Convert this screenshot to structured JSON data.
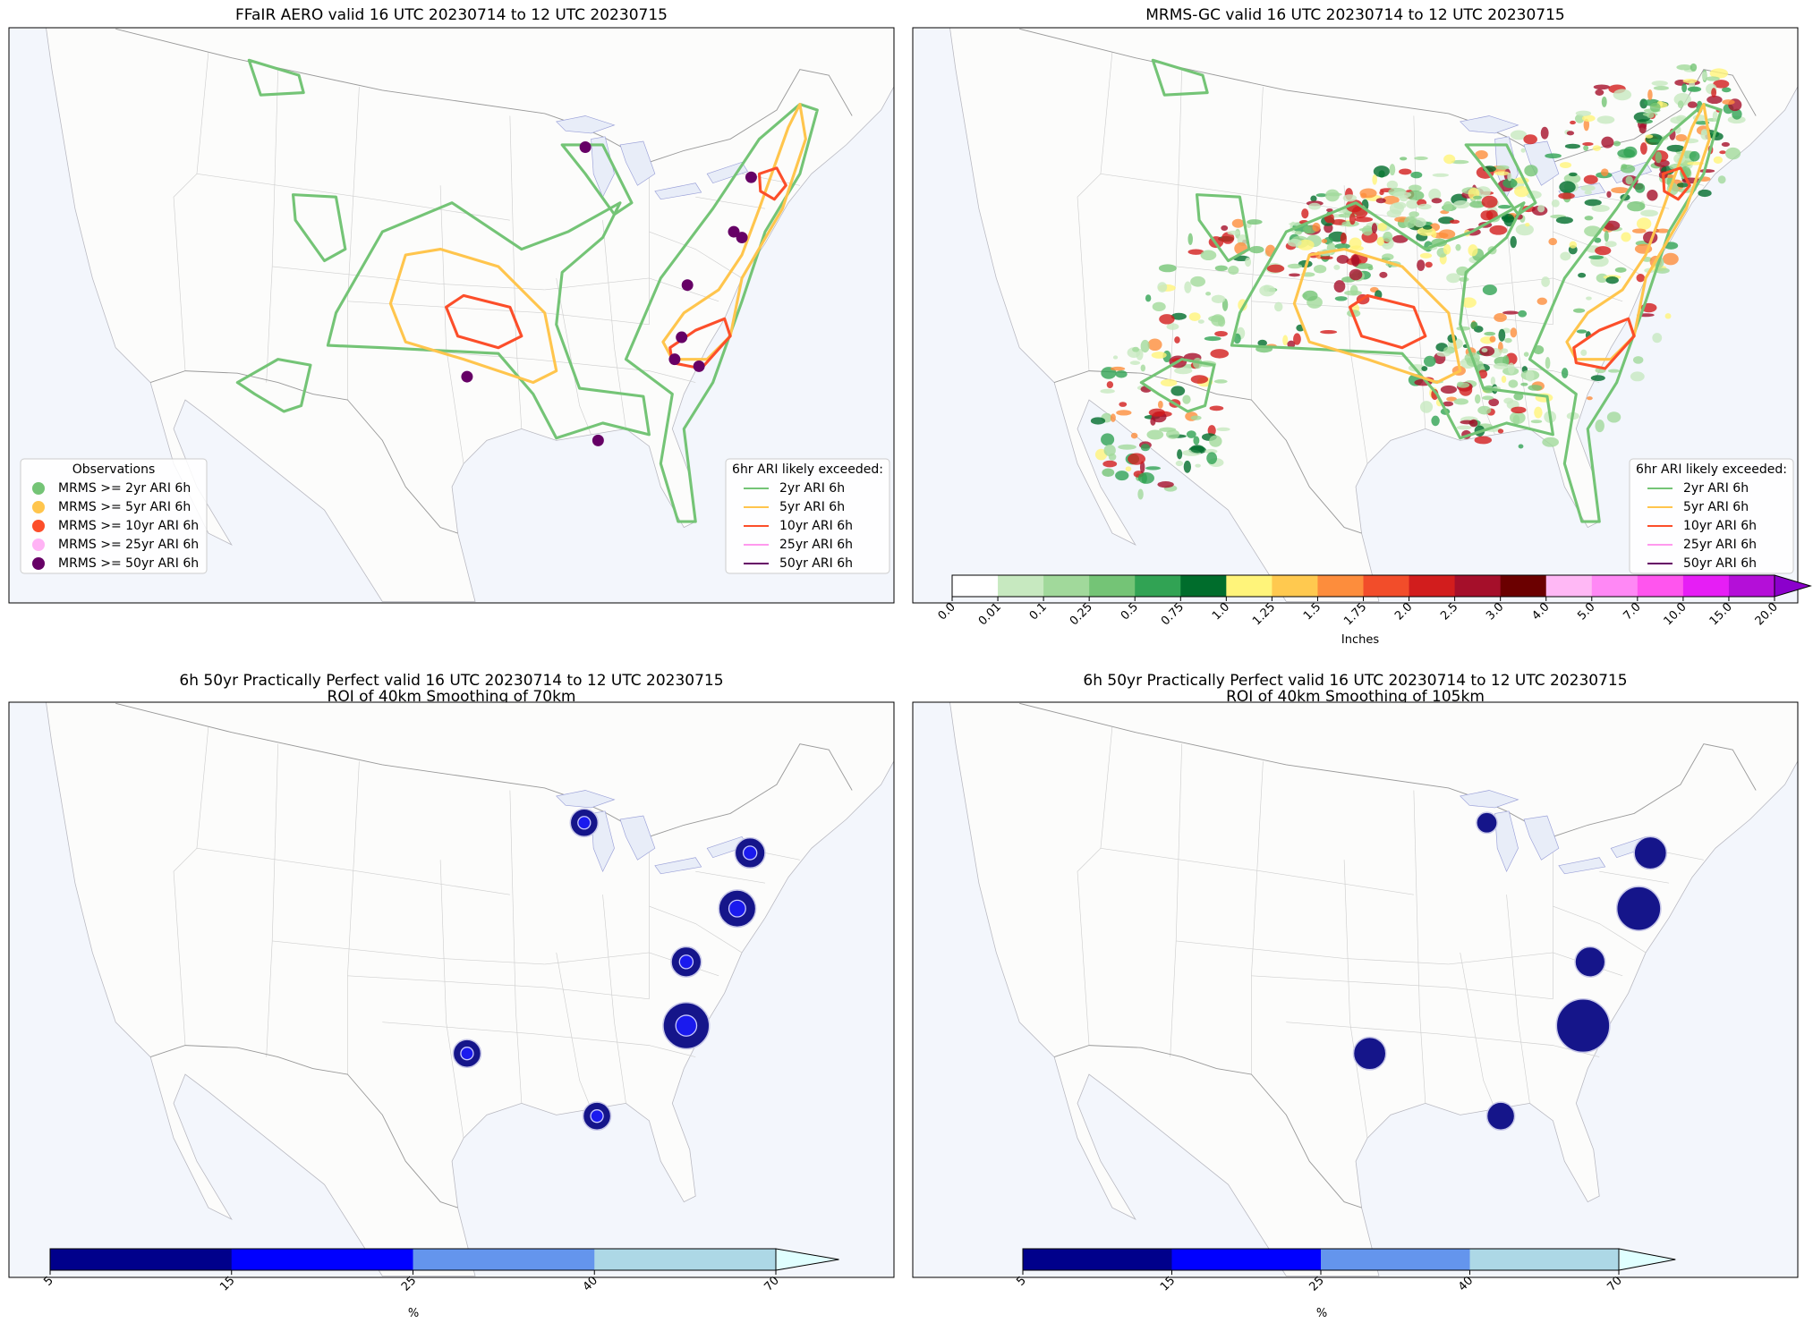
{
  "panels": [
    {
      "title": "FFaIR AERO valid 16 UTC 20230714 to 12 UTC 20230715",
      "legends": [
        {
          "title": "Observations",
          "kind": "marker",
          "corner": "lower left",
          "entries": [
            {
              "label": "MRMS >= 2yr ARI 6h",
              "color": "#74c476"
            },
            {
              "label": "MRMS >= 5yr ARI 6h",
              "color": "#ffc54d"
            },
            {
              "label": "MRMS >= 10yr ARI 6h",
              "color": "#fc4e2a"
            },
            {
              "label": "MRMS >= 25yr ARI 6h",
              "color": "#ffb3f5"
            },
            {
              "label": "MRMS >= 50yr ARI 6h",
              "color": "#660066"
            }
          ]
        },
        {
          "title": "6hr ARI likely exceeded:",
          "kind": "line",
          "corner": "lower right",
          "entries": [
            {
              "label": "2yr ARI 6h",
              "color": "#74c476"
            },
            {
              "label": "5yr ARI 6h",
              "color": "#ffc54d"
            },
            {
              "label": "10yr ARI 6h",
              "color": "#fc4e2a"
            },
            {
              "label": "25yr ARI 6h",
              "color": "#ff99ee"
            },
            {
              "label": "50yr ARI 6h",
              "color": "#660066"
            }
          ]
        }
      ]
    },
    {
      "title": "MRMS-GC valid 16 UTC 20230714 to 12 UTC 20230715",
      "legends": [
        {
          "title": "6hr ARI likely exceeded:",
          "kind": "line",
          "corner": "lower right",
          "entries": [
            {
              "label": "2yr ARI 6h",
              "color": "#74c476"
            },
            {
              "label": "5yr ARI 6h",
              "color": "#ffc54d"
            },
            {
              "label": "10yr ARI 6h",
              "color": "#fc4e2a"
            },
            {
              "label": "25yr ARI 6h",
              "color": "#ff99ee"
            },
            {
              "label": "50yr ARI 6h",
              "color": "#660066"
            }
          ]
        }
      ],
      "colorbar": {
        "label": "Inches",
        "ticks": [
          "0.0",
          "0.01",
          "0.1",
          "0.25",
          "0.5",
          "0.75",
          "1.0",
          "1.25",
          "1.5",
          "1.75",
          "2.0",
          "2.5",
          "3.0",
          "4.0",
          "5.0",
          "7.0",
          "10.0",
          "15.0",
          "20.0"
        ],
        "colors": [
          "#ffffff",
          "#c7e9c0",
          "#a1d99b",
          "#74c476",
          "#31a354",
          "#006d2c",
          "#fff47a",
          "#ffc94f",
          "#fd8d3c",
          "#f24d2a",
          "#d21d1d",
          "#a50f2a",
          "#6b0000",
          "#ffb8f5",
          "#ff88f5",
          "#ff55ee",
          "#e61ef5",
          "#b40fd8"
        ],
        "extend_color": "#8b00cc"
      }
    },
    {
      "title": "6h 50yr Practically Perfect valid 16 UTC 20230714 to 12 UTC 20230715",
      "subtitle": "ROI of 40km Smoothing of 70km",
      "colorbar": {
        "label": "%",
        "ticks": [
          5,
          15,
          25,
          40,
          70
        ],
        "colors": [
          "#00008b",
          "#0000ff",
          "#6495ed",
          "#add8e6"
        ],
        "extend_color": "#e0ffff"
      }
    },
    {
      "title": "6h 50yr Practically Perfect valid 16 UTC 20230714 to 12 UTC 20230715",
      "subtitle": "ROI of 40km Smoothing of 105km",
      "colorbar": {
        "label": "%",
        "ticks": [
          5,
          15,
          25,
          40,
          70
        ],
        "colors": [
          "#00008b",
          "#0000ff",
          "#6495ed",
          "#add8e6"
        ],
        "extend_color": "#e0ffff"
      }
    }
  ]
}
